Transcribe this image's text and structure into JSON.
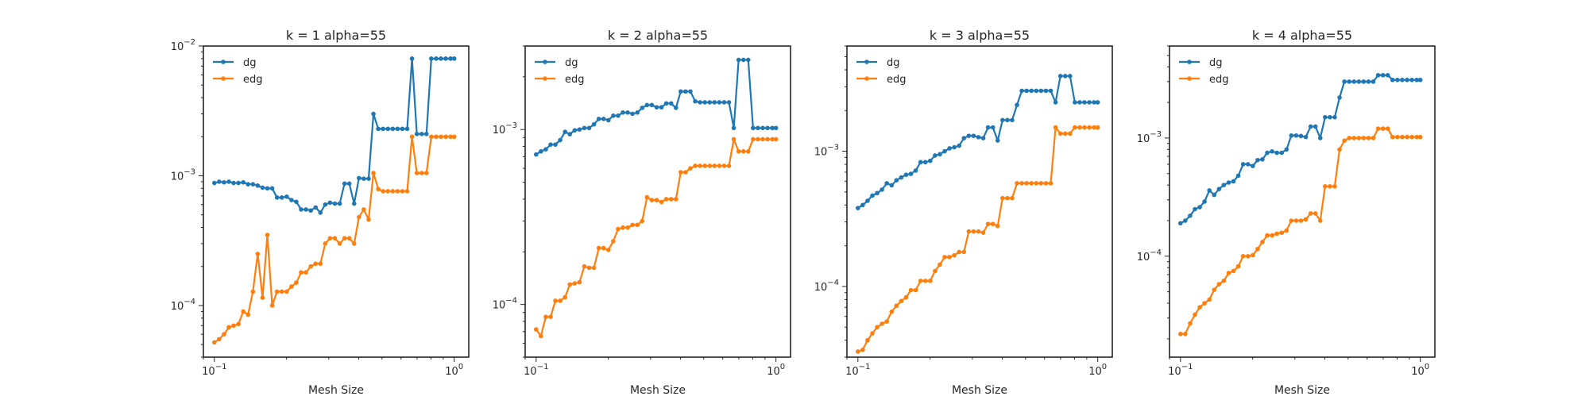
{
  "figure": {
    "background": "#ffffff"
  },
  "colors": {
    "dg": "#1f77b4",
    "edg": "#ff7f0e",
    "axis": "#262626"
  },
  "chart_data": [
    {
      "type": "line",
      "title": "k = 1 alpha=55",
      "xlabel": "Mesh Size",
      "ylabel": "",
      "xscale": "log",
      "yscale": "log",
      "xlim": [
        0.09,
        1.15
      ],
      "ylim": [
        4e-05,
        0.01
      ],
      "xticks": [
        0.1,
        1
      ],
      "xtick_labels": [
        {
          "base": "10",
          "exp": "−1"
        },
        {
          "base": "10",
          "exp": "0"
        }
      ],
      "yticks": [
        0.0001,
        0.001,
        0.01
      ],
      "ytick_labels": [
        {
          "base": "10",
          "exp": "−4"
        },
        {
          "base": "10",
          "exp": "−3"
        },
        {
          "base": "10",
          "exp": "−2"
        }
      ],
      "grid": false,
      "legend": "top-left",
      "x": [
        0.1,
        0.1047,
        0.1097,
        0.1149,
        0.1203,
        0.126,
        0.132,
        0.1382,
        0.1448,
        0.1516,
        0.1588,
        0.1663,
        0.1742,
        0.1825,
        0.1911,
        0.2002,
        0.2097,
        0.2196,
        0.23,
        0.2409,
        0.2523,
        0.2643,
        0.2768,
        0.2899,
        0.3036,
        0.318,
        0.3331,
        0.3489,
        0.3654,
        0.3827,
        0.4008,
        0.4198,
        0.4397,
        0.4606,
        0.4824,
        0.5052,
        0.5292,
        0.5543,
        0.5805,
        0.608,
        0.6368,
        0.667,
        0.6986,
        0.7317,
        0.7663,
        0.8026,
        0.8407,
        0.8805,
        0.9222,
        0.9659,
        1.0
      ],
      "series": [
        {
          "name": "dg",
          "color": "#1f77b4",
          "values": [
            0.00088,
            0.0009,
            0.00089,
            0.0009,
            0.00088,
            0.00088,
            0.00089,
            0.00086,
            0.00086,
            0.00084,
            0.00081,
            0.0008,
            0.0008,
            0.00068,
            0.00068,
            0.00069,
            0.00065,
            0.00063,
            0.00055,
            0.00055,
            0.00054,
            0.00057,
            0.00052,
            0.0006,
            0.00062,
            0.00061,
            0.00061,
            0.00087,
            0.00087,
            0.00061,
            0.00096,
            0.00095,
            0.00095,
            0.003,
            0.0023,
            0.0023,
            0.0023,
            0.0023,
            0.0023,
            0.0023,
            0.0023,
            0.008,
            0.0021,
            0.0021,
            0.0021,
            0.008,
            0.008,
            0.008,
            0.008,
            0.008,
            0.008
          ]
        },
        {
          "name": "edg",
          "color": "#ff7f0e",
          "values": [
            5.2e-05,
            5.5e-05,
            6e-05,
            6.8e-05,
            7e-05,
            7.2e-05,
            9e-05,
            8.5e-05,
            0.000128,
            0.00025,
            0.000115,
            0.00035,
            0.0001,
            0.000128,
            0.000128,
            0.000128,
            0.00014,
            0.00015,
            0.00018,
            0.00018,
            0.0002,
            0.00021,
            0.00021,
            0.0003,
            0.00033,
            0.00033,
            0.0003,
            0.00033,
            0.00033,
            0.0003,
            0.00048,
            0.00055,
            0.00046,
            0.00105,
            0.00079,
            0.00076,
            0.00076,
            0.00076,
            0.00076,
            0.00076,
            0.00076,
            0.002,
            0.00105,
            0.00105,
            0.00105,
            0.002,
            0.002,
            0.002,
            0.002,
            0.002,
            0.002
          ]
        }
      ]
    },
    {
      "type": "line",
      "title": "k = 2 alpha=55",
      "xlabel": "Mesh Size",
      "ylabel": "",
      "xscale": "log",
      "yscale": "log",
      "xlim": [
        0.09,
        1.15
      ],
      "ylim": [
        5e-05,
        0.003
      ],
      "xticks": [
        0.1,
        1
      ],
      "xtick_labels": [
        {
          "base": "10",
          "exp": "−1"
        },
        {
          "base": "10",
          "exp": "0"
        }
      ],
      "yticks": [
        0.0001,
        0.001
      ],
      "ytick_labels": [
        {
          "base": "10",
          "exp": "−4"
        },
        {
          "base": "10",
          "exp": "−3"
        }
      ],
      "grid": false,
      "legend": "top-left",
      "x": [
        0.1,
        0.1047,
        0.1097,
        0.1149,
        0.1203,
        0.126,
        0.132,
        0.1382,
        0.1448,
        0.1516,
        0.1588,
        0.1663,
        0.1742,
        0.1825,
        0.1911,
        0.2002,
        0.2097,
        0.2196,
        0.23,
        0.2409,
        0.2523,
        0.2643,
        0.2768,
        0.2899,
        0.3036,
        0.318,
        0.3331,
        0.3489,
        0.3654,
        0.3827,
        0.4008,
        0.4198,
        0.4397,
        0.4606,
        0.4824,
        0.5052,
        0.5292,
        0.5543,
        0.5805,
        0.608,
        0.6368,
        0.667,
        0.6986,
        0.7317,
        0.7663,
        0.8026,
        0.8407,
        0.8805,
        0.9222,
        0.9659,
        1.0
      ],
      "series": [
        {
          "name": "dg",
          "color": "#1f77b4",
          "values": [
            0.00072,
            0.00075,
            0.00077,
            0.00082,
            0.00082,
            0.00087,
            0.00097,
            0.00094,
            0.00099,
            0.001,
            0.00102,
            0.00102,
            0.00107,
            0.00115,
            0.00115,
            0.00113,
            0.0012,
            0.0012,
            0.00125,
            0.00125,
            0.00123,
            0.00125,
            0.00133,
            0.00138,
            0.00138,
            0.00134,
            0.00134,
            0.00141,
            0.00141,
            0.00133,
            0.00165,
            0.00165,
            0.00165,
            0.00145,
            0.00143,
            0.00143,
            0.00143,
            0.00143,
            0.00143,
            0.00143,
            0.00143,
            0.00102,
            0.0025,
            0.0025,
            0.0025,
            0.00102,
            0.00102,
            0.00102,
            0.00102,
            0.00102,
            0.00102
          ]
        },
        {
          "name": "edg",
          "color": "#ff7f0e",
          "values": [
            7.2e-05,
            6.6e-05,
            8.5e-05,
            8.5e-05,
            0.000105,
            0.000105,
            0.00011,
            0.00013,
            0.000132,
            0.000134,
            0.000165,
            0.000162,
            0.000162,
            0.00021,
            0.00021,
            0.000205,
            0.00023,
            0.00027,
            0.000275,
            0.000275,
            0.000285,
            0.000285,
            0.0003,
            0.00041,
            0.000395,
            0.000395,
            0.000385,
            0.0004,
            0.0004,
            0.0004,
            0.00057,
            0.00057,
            0.0006,
            0.00062,
            0.00062,
            0.00062,
            0.00062,
            0.00062,
            0.00062,
            0.00062,
            0.00062,
            0.00088,
            0.00075,
            0.00075,
            0.00075,
            0.00088,
            0.00088,
            0.00088,
            0.00088,
            0.00088,
            0.00088
          ]
        }
      ]
    },
    {
      "type": "line",
      "title": "k = 3 alpha=55",
      "xlabel": "Mesh Size",
      "ylabel": "",
      "xscale": "log",
      "yscale": "log",
      "xlim": [
        0.09,
        1.15
      ],
      "ylim": [
        3e-05,
        0.006
      ],
      "xticks": [
        0.1,
        1
      ],
      "xtick_labels": [
        {
          "base": "10",
          "exp": "−1"
        },
        {
          "base": "10",
          "exp": "0"
        }
      ],
      "yticks": [
        0.0001,
        0.001
      ],
      "ytick_labels": [
        {
          "base": "10",
          "exp": "−4"
        },
        {
          "base": "10",
          "exp": "−3"
        }
      ],
      "grid": false,
      "legend": "top-left",
      "x": [
        0.1,
        0.1047,
        0.1097,
        0.1149,
        0.1203,
        0.126,
        0.132,
        0.1382,
        0.1448,
        0.1516,
        0.1588,
        0.1663,
        0.1742,
        0.1825,
        0.1911,
        0.2002,
        0.2097,
        0.2196,
        0.23,
        0.2409,
        0.2523,
        0.2643,
        0.2768,
        0.2899,
        0.3036,
        0.318,
        0.3331,
        0.3489,
        0.3654,
        0.3827,
        0.4008,
        0.4198,
        0.4397,
        0.4606,
        0.4824,
        0.5052,
        0.5292,
        0.5543,
        0.5805,
        0.608,
        0.6368,
        0.667,
        0.6986,
        0.7317,
        0.7663,
        0.8026,
        0.8407,
        0.8805,
        0.9222,
        0.9659,
        1.0
      ],
      "series": [
        {
          "name": "dg",
          "color": "#1f77b4",
          "values": [
            0.00038,
            0.0004,
            0.00043,
            0.00047,
            0.00049,
            0.00052,
            0.00058,
            0.00056,
            0.00061,
            0.00064,
            0.00067,
            0.00068,
            0.00072,
            0.00083,
            0.00083,
            0.00085,
            0.00093,
            0.00095,
            0.001,
            0.00105,
            0.00107,
            0.0011,
            0.00125,
            0.0013,
            0.0013,
            0.00127,
            0.00125,
            0.0015,
            0.0015,
            0.0012,
            0.0017,
            0.0017,
            0.0017,
            0.0022,
            0.0028,
            0.0028,
            0.0028,
            0.0028,
            0.0028,
            0.0028,
            0.0028,
            0.0023,
            0.0036,
            0.0036,
            0.0036,
            0.0023,
            0.0023,
            0.0023,
            0.0023,
            0.0023,
            0.0023
          ]
        },
        {
          "name": "edg",
          "color": "#ff7f0e",
          "values": [
            3.3e-05,
            3.4e-05,
            4e-05,
            4.5e-05,
            5e-05,
            5.3e-05,
            5.5e-05,
            6.5e-05,
            7.2e-05,
            7.8e-05,
            8.3e-05,
            9.4e-05,
            9.4e-05,
            0.00011,
            0.00011,
            0.00011,
            0.00013,
            0.000145,
            0.000165,
            0.000165,
            0.00017,
            0.00018,
            0.00018,
            0.000255,
            0.000255,
            0.000255,
            0.00025,
            0.00029,
            0.00029,
            0.00028,
            0.00045,
            0.00045,
            0.00045,
            0.00058,
            0.00058,
            0.00058,
            0.00058,
            0.00058,
            0.00058,
            0.00058,
            0.00058,
            0.0015,
            0.00135,
            0.00135,
            0.00135,
            0.0015,
            0.0015,
            0.0015,
            0.0015,
            0.0015,
            0.0015
          ]
        }
      ]
    },
    {
      "type": "line",
      "title": "k = 4 alpha=55",
      "xlabel": "Mesh Size",
      "ylabel": "",
      "xscale": "log",
      "yscale": "log",
      "xlim": [
        0.09,
        1.15
      ],
      "ylim": [
        1.4e-05,
        0.006
      ],
      "xticks": [
        0.1,
        1
      ],
      "xtick_labels": [
        {
          "base": "10",
          "exp": "−1"
        },
        {
          "base": "10",
          "exp": "0"
        }
      ],
      "yticks": [
        0.0001,
        0.001
      ],
      "ytick_labels": [
        {
          "base": "10",
          "exp": "−4"
        },
        {
          "base": "10",
          "exp": "−3"
        }
      ],
      "grid": false,
      "legend": "top-left",
      "x": [
        0.1,
        0.1047,
        0.1097,
        0.1149,
        0.1203,
        0.126,
        0.132,
        0.1382,
        0.1448,
        0.1516,
        0.1588,
        0.1663,
        0.1742,
        0.1825,
        0.1911,
        0.2002,
        0.2097,
        0.2196,
        0.23,
        0.2409,
        0.2523,
        0.2643,
        0.2768,
        0.2899,
        0.3036,
        0.318,
        0.3331,
        0.3489,
        0.3654,
        0.3827,
        0.4008,
        0.4198,
        0.4397,
        0.4606,
        0.4824,
        0.5052,
        0.5292,
        0.5543,
        0.5805,
        0.608,
        0.6368,
        0.667,
        0.6986,
        0.7317,
        0.7663,
        0.8026,
        0.8407,
        0.8805,
        0.9222,
        0.9659,
        1.0
      ],
      "series": [
        {
          "name": "dg",
          "color": "#1f77b4",
          "values": [
            0.00019,
            0.0002,
            0.00022,
            0.00025,
            0.00026,
            0.00029,
            0.00036,
            0.00033,
            0.00037,
            0.0004,
            0.00042,
            0.00043,
            0.00048,
            0.0006,
            0.0006,
            0.00058,
            0.00065,
            0.00066,
            0.00075,
            0.00077,
            0.00075,
            0.00075,
            0.0008,
            0.00105,
            0.00105,
            0.00104,
            0.00102,
            0.00125,
            0.00125,
            0.001,
            0.0015,
            0.0015,
            0.0015,
            0.0022,
            0.003,
            0.003,
            0.003,
            0.003,
            0.003,
            0.003,
            0.003,
            0.0034,
            0.0034,
            0.0034,
            0.0031,
            0.0031,
            0.0031,
            0.0031,
            0.0031,
            0.0031,
            0.0031
          ]
        },
        {
          "name": "edg",
          "color": "#ff7f0e",
          "values": [
            2.2e-05,
            2.2e-05,
            2.7e-05,
            3.2e-05,
            3.7e-05,
            4e-05,
            4.3e-05,
            5.2e-05,
            5.8e-05,
            6.2e-05,
            7.2e-05,
            7.5e-05,
            8.2e-05,
            0.0001,
            0.0001,
            0.000102,
            0.000115,
            0.000132,
            0.00015,
            0.00015,
            0.000155,
            0.000158,
            0.000165,
            0.0002,
            0.0002,
            0.0002,
            0.000205,
            0.00023,
            0.00023,
            0.0002,
            0.00039,
            0.00039,
            0.00039,
            0.0008,
            0.00095,
            0.001,
            0.001,
            0.001,
            0.001,
            0.001,
            0.001,
            0.0012,
            0.0012,
            0.0012,
            0.00102,
            0.00102,
            0.00102,
            0.00102,
            0.00102,
            0.00102,
            0.00102
          ]
        }
      ]
    }
  ]
}
